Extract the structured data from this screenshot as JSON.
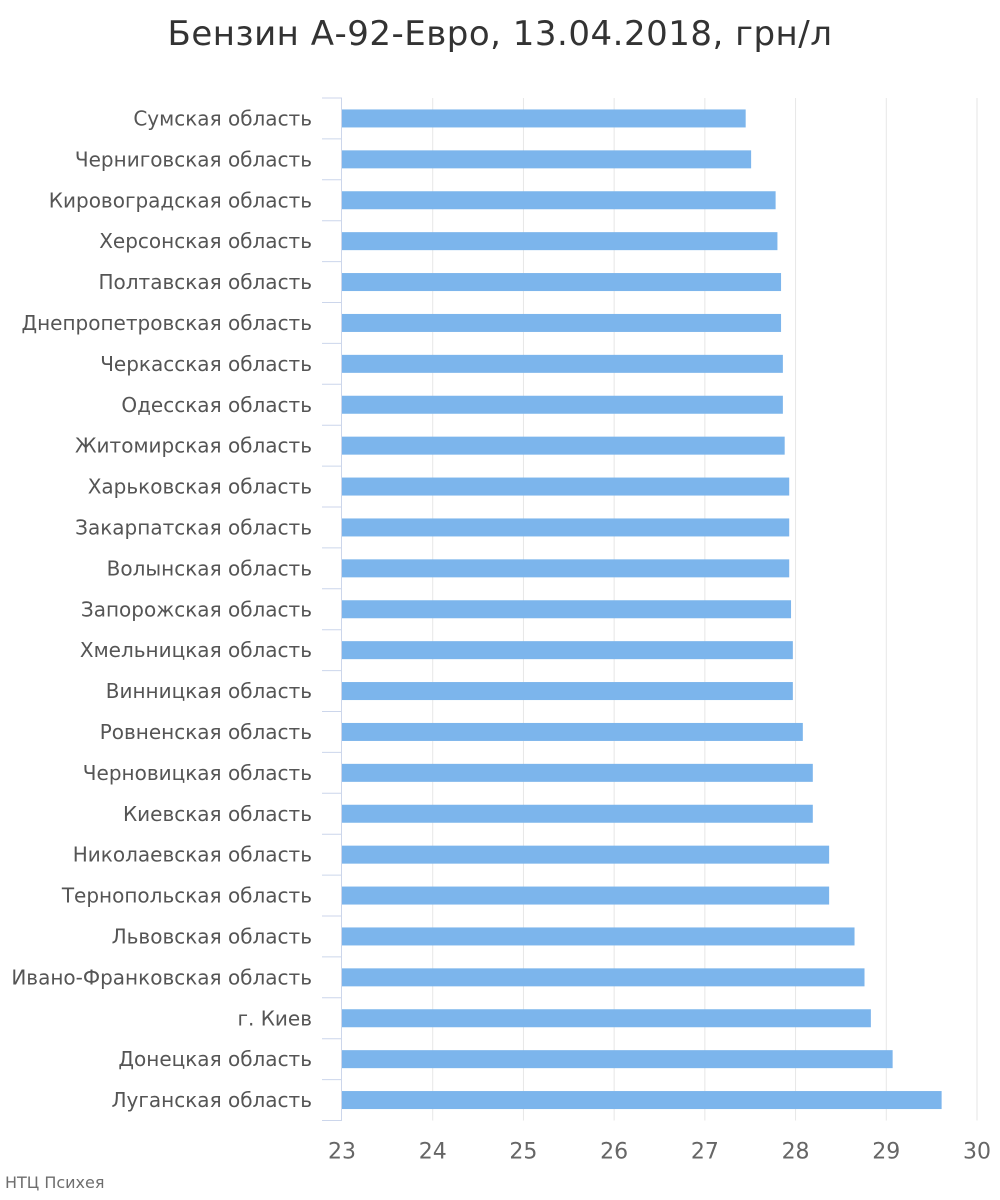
{
  "chart_data": {
    "type": "bar",
    "orientation": "horizontal",
    "title": "Бензин А-92-Евро, 13.04.2018, грн/л",
    "xlabel": "",
    "ylabel": "",
    "xlim": [
      23,
      30
    ],
    "x_ticks": [
      "23",
      "24",
      "25",
      "26",
      "27",
      "28",
      "29",
      "30"
    ],
    "grid": true,
    "bar_color": "#7cb5ec",
    "categories": [
      "Сумская область",
      "Черниговская область",
      "Кировоградская область",
      "Херсонская область",
      "Полтавская область",
      "Днепропетровская область",
      "Черкасская область",
      "Одесская область",
      "Житомирская область",
      "Харьковская область",
      "Закарпатская область",
      "Волынская область",
      "Запорожская область",
      "Хмельницкая область",
      "Винницкая область",
      "Ровненская область",
      "Черновицкая область",
      "Киевская область",
      "Николаевская область",
      "Тернопольская область",
      "Львовская область",
      "Ивано-Франковская область",
      "г. Киев",
      "Донецкая область",
      "Луганская область"
    ],
    "values": [
      27.45,
      27.51,
      27.78,
      27.8,
      27.84,
      27.84,
      27.86,
      27.86,
      27.88,
      27.93,
      27.93,
      27.93,
      27.95,
      27.97,
      27.97,
      28.08,
      28.19,
      28.19,
      28.37,
      28.37,
      28.65,
      28.76,
      28.83,
      29.07,
      29.61
    ]
  },
  "credit": "НТЦ Психея"
}
